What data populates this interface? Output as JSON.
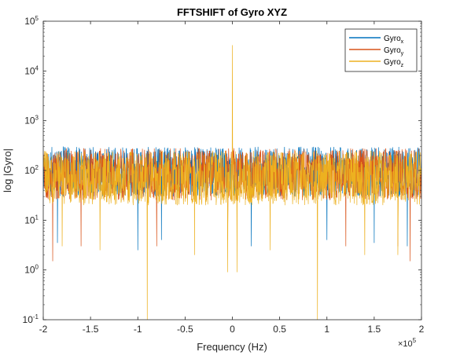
{
  "chart_data": {
    "type": "line",
    "title": "FFTSHIFT of Gyro XYZ",
    "xlabel": "Frequency (Hz)",
    "ylabel": "log |Gyro|",
    "x_multiplier": "×10",
    "x_multiplier_exp": "5",
    "xlim": [
      -200000,
      200000
    ],
    "ylim_log10": [
      -1,
      5
    ],
    "yscale": "log",
    "x_ticks": [
      -200000,
      -150000,
      -100000,
      -50000,
      0,
      50000,
      100000,
      150000,
      200000
    ],
    "x_tick_labels": [
      "-2",
      "-1.5",
      "-1",
      "-0.5",
      "0",
      "0.5",
      "1",
      "1.5",
      "2"
    ],
    "y_ticks_exp": [
      "-1",
      "0",
      "1",
      "2",
      "3",
      "4",
      "5"
    ],
    "y_tick_base": "10",
    "grid": false,
    "legend": "top-right",
    "series": [
      {
        "name": "Gyro",
        "subscript": "x",
        "color": "#0072BD",
        "noise_band": [
          30,
          300
        ],
        "dips": [
          [
            -185000,
            3.5
          ],
          [
            -100000,
            2.5
          ],
          [
            -75000,
            4
          ],
          [
            20000,
            3
          ],
          [
            100000,
            4
          ],
          [
            150000,
            3.5
          ],
          [
            185000,
            3
          ]
        ],
        "peak": [
          0,
          300
        ]
      },
      {
        "name": "Gyro",
        "subscript": "y",
        "color": "#D95319",
        "noise_band": [
          25,
          280
        ],
        "dips": [
          [
            -190000,
            1.5
          ],
          [
            -160000,
            3
          ],
          [
            -80000,
            3
          ],
          [
            -5000,
            4
          ],
          [
            120000,
            3
          ],
          [
            175000,
            3
          ],
          [
            188000,
            1.5
          ]
        ],
        "peak": [
          0,
          350
        ]
      },
      {
        "name": "Gyro",
        "subscript": "z",
        "color": "#EDB120",
        "noise_band": [
          20,
          250
        ],
        "dips": [
          [
            -180000,
            3
          ],
          [
            -140000,
            2.5
          ],
          [
            -90000,
            0.1
          ],
          [
            -40000,
            2
          ],
          [
            -5000,
            0.9
          ],
          [
            5000,
            0.9
          ],
          [
            40000,
            2.5
          ],
          [
            90000,
            0.1
          ],
          [
            140000,
            2
          ],
          [
            175000,
            2
          ]
        ],
        "peak": [
          0,
          33000
        ]
      }
    ]
  }
}
